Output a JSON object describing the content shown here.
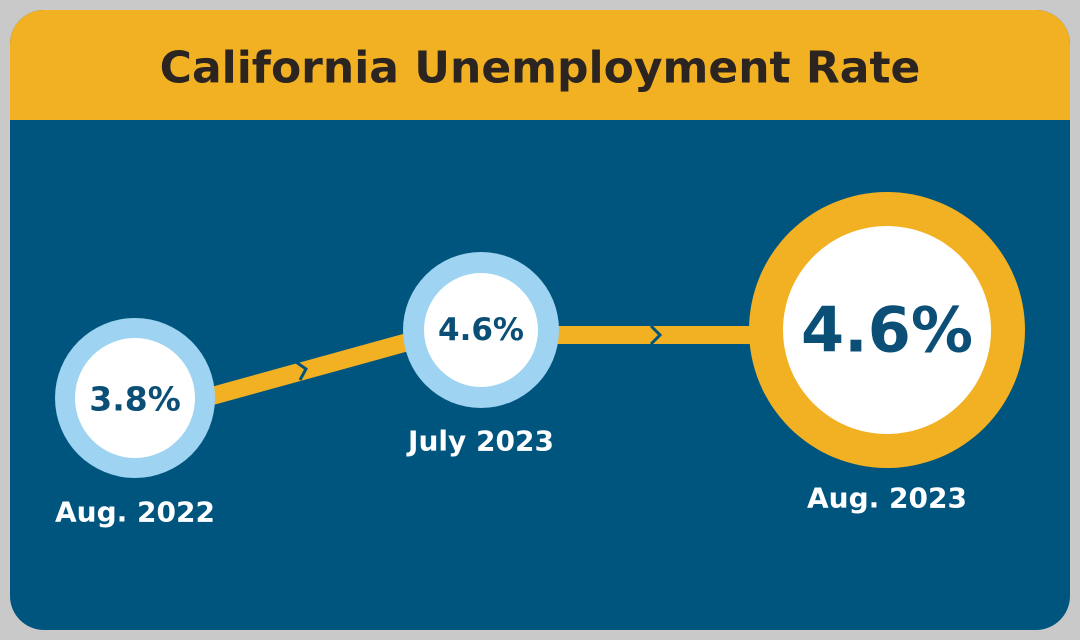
{
  "title": "California Unemployment Rate",
  "points": [
    {
      "value": "3.8%",
      "label": "Aug. 2022"
    },
    {
      "value": "4.6%",
      "label": "July 2023"
    },
    {
      "value": "4.6%",
      "label": "Aug. 2023"
    }
  ]
}
